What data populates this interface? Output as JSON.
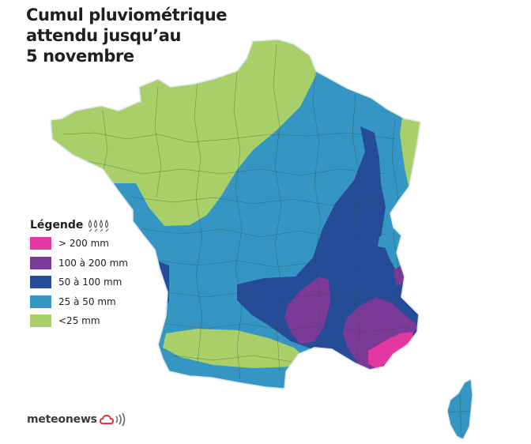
{
  "title": {
    "line1": "Cumul pluviométrique",
    "line2": "attendu jusqu’au",
    "line3": "5 novembre"
  },
  "legend": {
    "title": "Légende",
    "icon": "rain-drops-icon",
    "items": [
      {
        "label": "> 200 mm",
        "color": "#e2389f"
      },
      {
        "label": "100 à 200 mm",
        "color": "#7b3a98"
      },
      {
        "label": "50 à 100 mm",
        "color": "#244c98"
      },
      {
        "label": "25 à 50 mm",
        "color": "#3596c3"
      },
      {
        "label": "<25 mm",
        "color": "#a8cf68"
      }
    ]
  },
  "brand": {
    "name": "meteonews",
    "icon": "cloud-broadcast-icon",
    "color": "#e2343a"
  },
  "map": {
    "region": "France",
    "includes": [
      "Corse"
    ]
  }
}
